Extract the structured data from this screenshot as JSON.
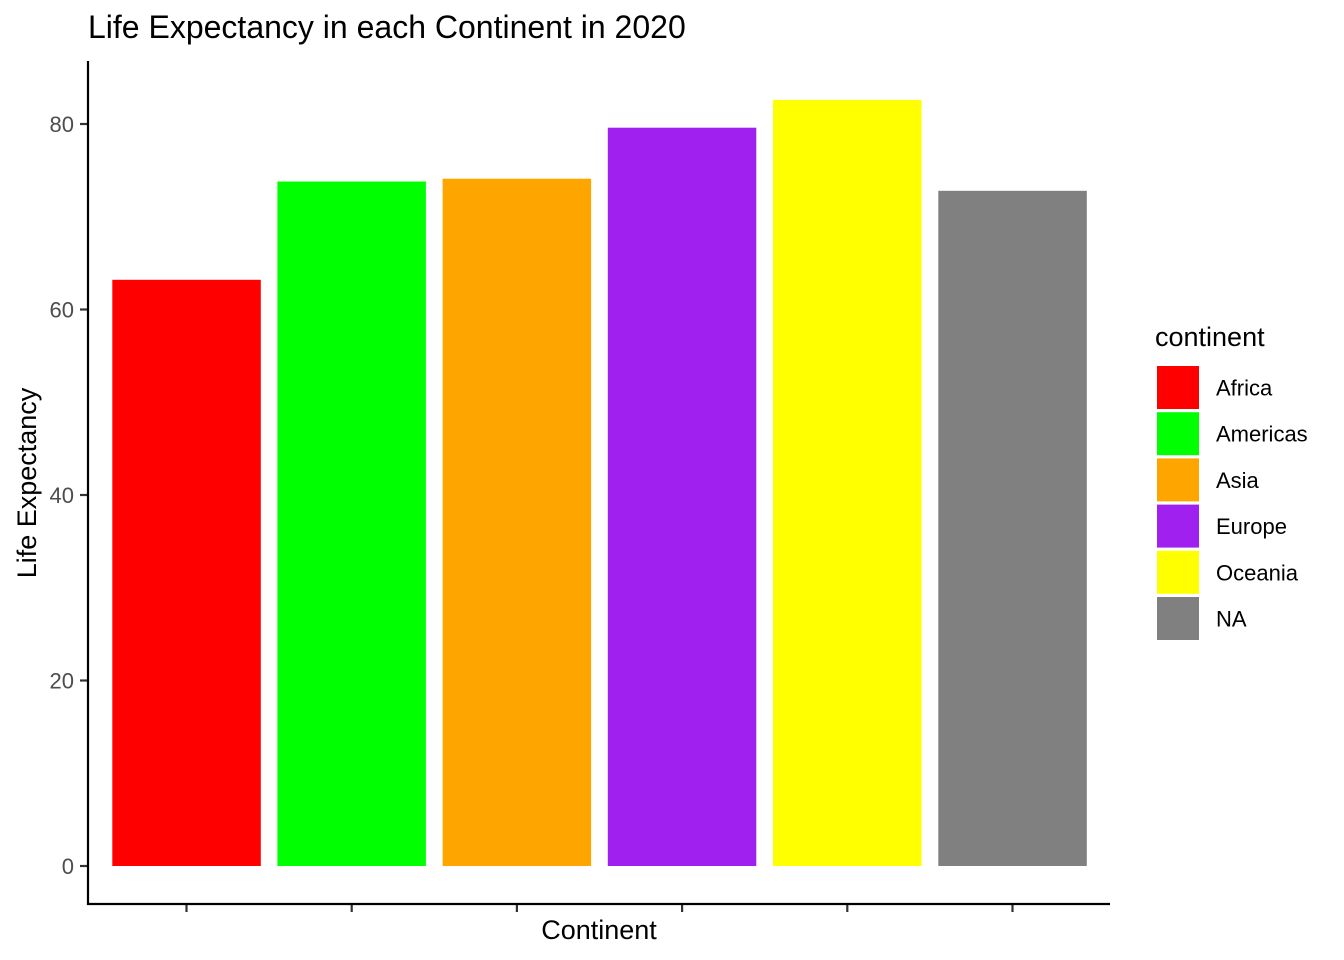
{
  "chart_data": {
    "type": "bar",
    "title": "Life Expectancy in each Continent in 2020",
    "xlabel": "Continent",
    "ylabel": "Life Expectancy",
    "categories": [
      "Africa",
      "Americas",
      "Asia",
      "Europe",
      "Oceania",
      "NA"
    ],
    "values": [
      63.2,
      73.8,
      74.1,
      79.6,
      82.6,
      72.8
    ],
    "colors": [
      "#FF0000",
      "#00FF00",
      "#FFA500",
      "#A020F0",
      "#FFFF00",
      "#808080"
    ],
    "ylim": [
      0,
      85
    ],
    "yticks": [
      0,
      20,
      40,
      60,
      80
    ],
    "ytick_labels": [
      "0",
      "20",
      "40",
      "60",
      "80"
    ],
    "grid": false,
    "legend": {
      "title": "continent",
      "position": "right",
      "entries": [
        "Africa",
        "Americas",
        "Asia",
        "Europe",
        "Oceania",
        "NA"
      ]
    }
  }
}
